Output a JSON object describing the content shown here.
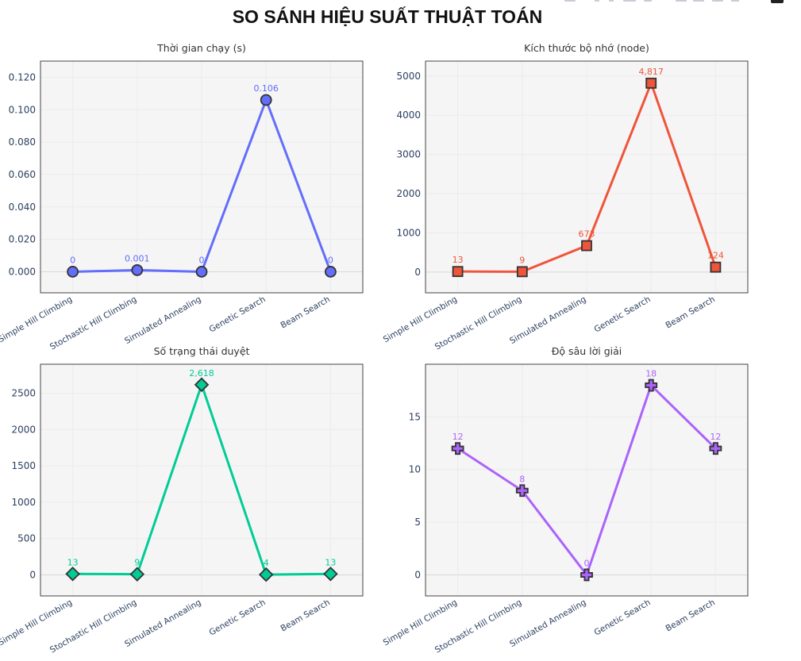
{
  "title": "SO SÁNH HIỆU SUẤT THUẬT TOÁN",
  "modebar": {
    "icons": [
      "camera-icon",
      "zoom-icon",
      "pan-icon",
      "box-select-icon",
      "lasso-icon",
      "zoom-in-icon",
      "zoom-out-icon",
      "autoscale-icon",
      "reset-axes-icon",
      "plotly-logo-icon"
    ]
  },
  "chart_data": [
    {
      "type": "line",
      "title": "Thời gian chạy (s)",
      "categories": [
        "Simple Hill Climbing",
        "Stochastic Hill Climbing",
        "Simulated Annealing",
        "Genetic Search",
        "Beam Search"
      ],
      "values": [
        0,
        0.001,
        0,
        0.106,
        0
      ],
      "labels": [
        "0",
        "0.001",
        "0",
        "0.106",
        "0"
      ],
      "ylim": [
        -0.013,
        0.13
      ],
      "yticks": [
        0,
        0.02,
        0.04,
        0.06,
        0.08,
        0.1,
        0.12
      ],
      "ytick_labels": [
        "0.000",
        "0.020",
        "0.040",
        "0.060",
        "0.080",
        "0.100",
        "0.120"
      ],
      "color": "#636efa",
      "marker": "circle",
      "grid": true
    },
    {
      "type": "line",
      "title": "Kích thước bộ nhớ (node)",
      "categories": [
        "Simple Hill Climbing",
        "Stochastic Hill Climbing",
        "Simulated Annealing",
        "Genetic Search",
        "Beam Search"
      ],
      "values": [
        13,
        9,
        673,
        4817,
        124
      ],
      "labels": [
        "13",
        "9",
        "673",
        "4,817",
        "124"
      ],
      "ylim": [
        -530,
        5380
      ],
      "yticks": [
        0,
        1000,
        2000,
        3000,
        4000,
        5000
      ],
      "ytick_labels": [
        "0",
        "1000",
        "2000",
        "3000",
        "4000",
        "5000"
      ],
      "color": "#ef553b",
      "marker": "square",
      "grid": true
    },
    {
      "type": "line",
      "title": "Số trạng thái duyệt",
      "categories": [
        "Simple Hill Climbing",
        "Stochastic Hill Climbing",
        "Simulated Annealing",
        "Genetic Search",
        "Beam Search"
      ],
      "values": [
        13,
        9,
        2618,
        4,
        13
      ],
      "labels": [
        "13",
        "9",
        "2,618",
        "4",
        "13"
      ],
      "ylim": [
        -290,
        2900
      ],
      "yticks": [
        0,
        500,
        1000,
        1500,
        2000,
        2500
      ],
      "ytick_labels": [
        "0",
        "500",
        "1000",
        "1500",
        "2000",
        "2500"
      ],
      "color": "#00cc96",
      "marker": "diamond",
      "grid": true
    },
    {
      "type": "line",
      "title": "Độ sâu lời giải",
      "categories": [
        "Simple Hill Climbing",
        "Stochastic Hill Climbing",
        "Simulated Annealing",
        "Genetic Search",
        "Beam Search"
      ],
      "values": [
        12,
        8,
        0,
        18,
        12
      ],
      "labels": [
        "12",
        "8",
        "0",
        "18",
        "12"
      ],
      "ylim": [
        -2,
        20
      ],
      "yticks": [
        0,
        5,
        10,
        15
      ],
      "ytick_labels": [
        "0",
        "5",
        "10",
        "15"
      ],
      "color": "#ab63fa",
      "marker": "cross",
      "grid": true
    }
  ]
}
